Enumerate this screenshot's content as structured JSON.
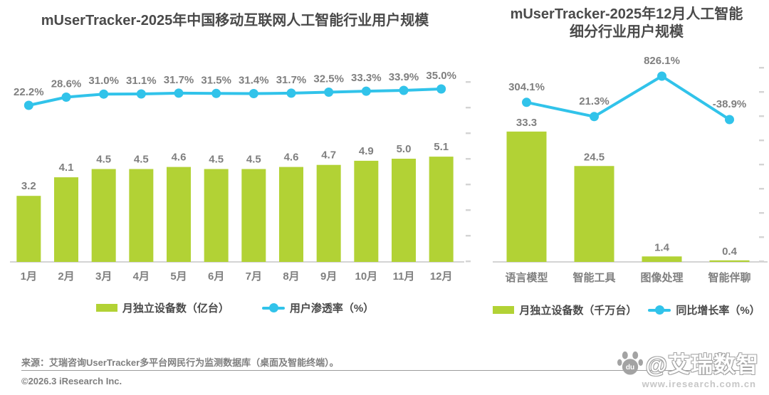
{
  "page": {
    "background": "#ffffff"
  },
  "colors": {
    "bar_green": "#b2d235",
    "line_cyan": "#31c3ea",
    "title_gray": "#4a4a4a",
    "label_gray": "#7f7f7f",
    "axis_gray": "#c6c6c6",
    "tick_gray": "#d4d4d4",
    "watermark_gray": "#a3a3a3"
  },
  "chart_data": [
    {
      "type": "bar+line",
      "title": "mUserTracker-2025年中国移动互联网人工智能行业用户规模",
      "categories": [
        "1月",
        "2月",
        "3月",
        "4月",
        "5月",
        "6月",
        "7月",
        "8月",
        "9月",
        "10月",
        "11月",
        "12月"
      ],
      "series": [
        {
          "name": "月独立设备数（亿台）",
          "type": "bar",
          "color": "#b2d235",
          "values": [
            3.2,
            4.1,
            4.5,
            4.5,
            4.6,
            4.5,
            4.5,
            4.6,
            4.7,
            4.9,
            5.0,
            5.1
          ]
        },
        {
          "name": "用户渗透率（%）",
          "type": "line",
          "color": "#31c3ea",
          "unit": "%",
          "values": [
            22.2,
            28.6,
            31.0,
            31.1,
            31.7,
            31.5,
            31.4,
            31.7,
            32.5,
            33.3,
            33.9,
            35.0
          ]
        }
      ],
      "grid": false,
      "legend_position": "bottom",
      "data_labels": true
    },
    {
      "type": "bar+line",
      "title": "mUserTracker-2025年12月人工智能细分行业用户规模",
      "title_lines": [
        "mUserTracker-2025年12月人工智能",
        "细分行业用户规模"
      ],
      "categories": [
        "语言模型",
        "智能工具",
        "图像处理",
        "智能伴聊"
      ],
      "series": [
        {
          "name": "月独立设备数（千万台）",
          "type": "bar",
          "color": "#b2d235",
          "values": [
            33.3,
            24.5,
            1.4,
            0.4
          ]
        },
        {
          "name": "同比增长率（%）",
          "type": "line",
          "color": "#31c3ea",
          "unit": "%",
          "values": [
            304.1,
            21.3,
            826.1,
            -38.9
          ]
        }
      ],
      "grid": false,
      "legend_position": "bottom",
      "data_labels": true
    }
  ],
  "footer": {
    "source": "来源：艾瑞咨询UserTracker多平台网民行为监测数据库（桌面及智能终端）。",
    "copyright": "©2026.3 iResearch Inc."
  },
  "watermark": {
    "logo": "baidu-paw-icon",
    "logo_text": "du",
    "handle": "@艾瑞数智",
    "url": "www.iresearch.com.cn"
  }
}
